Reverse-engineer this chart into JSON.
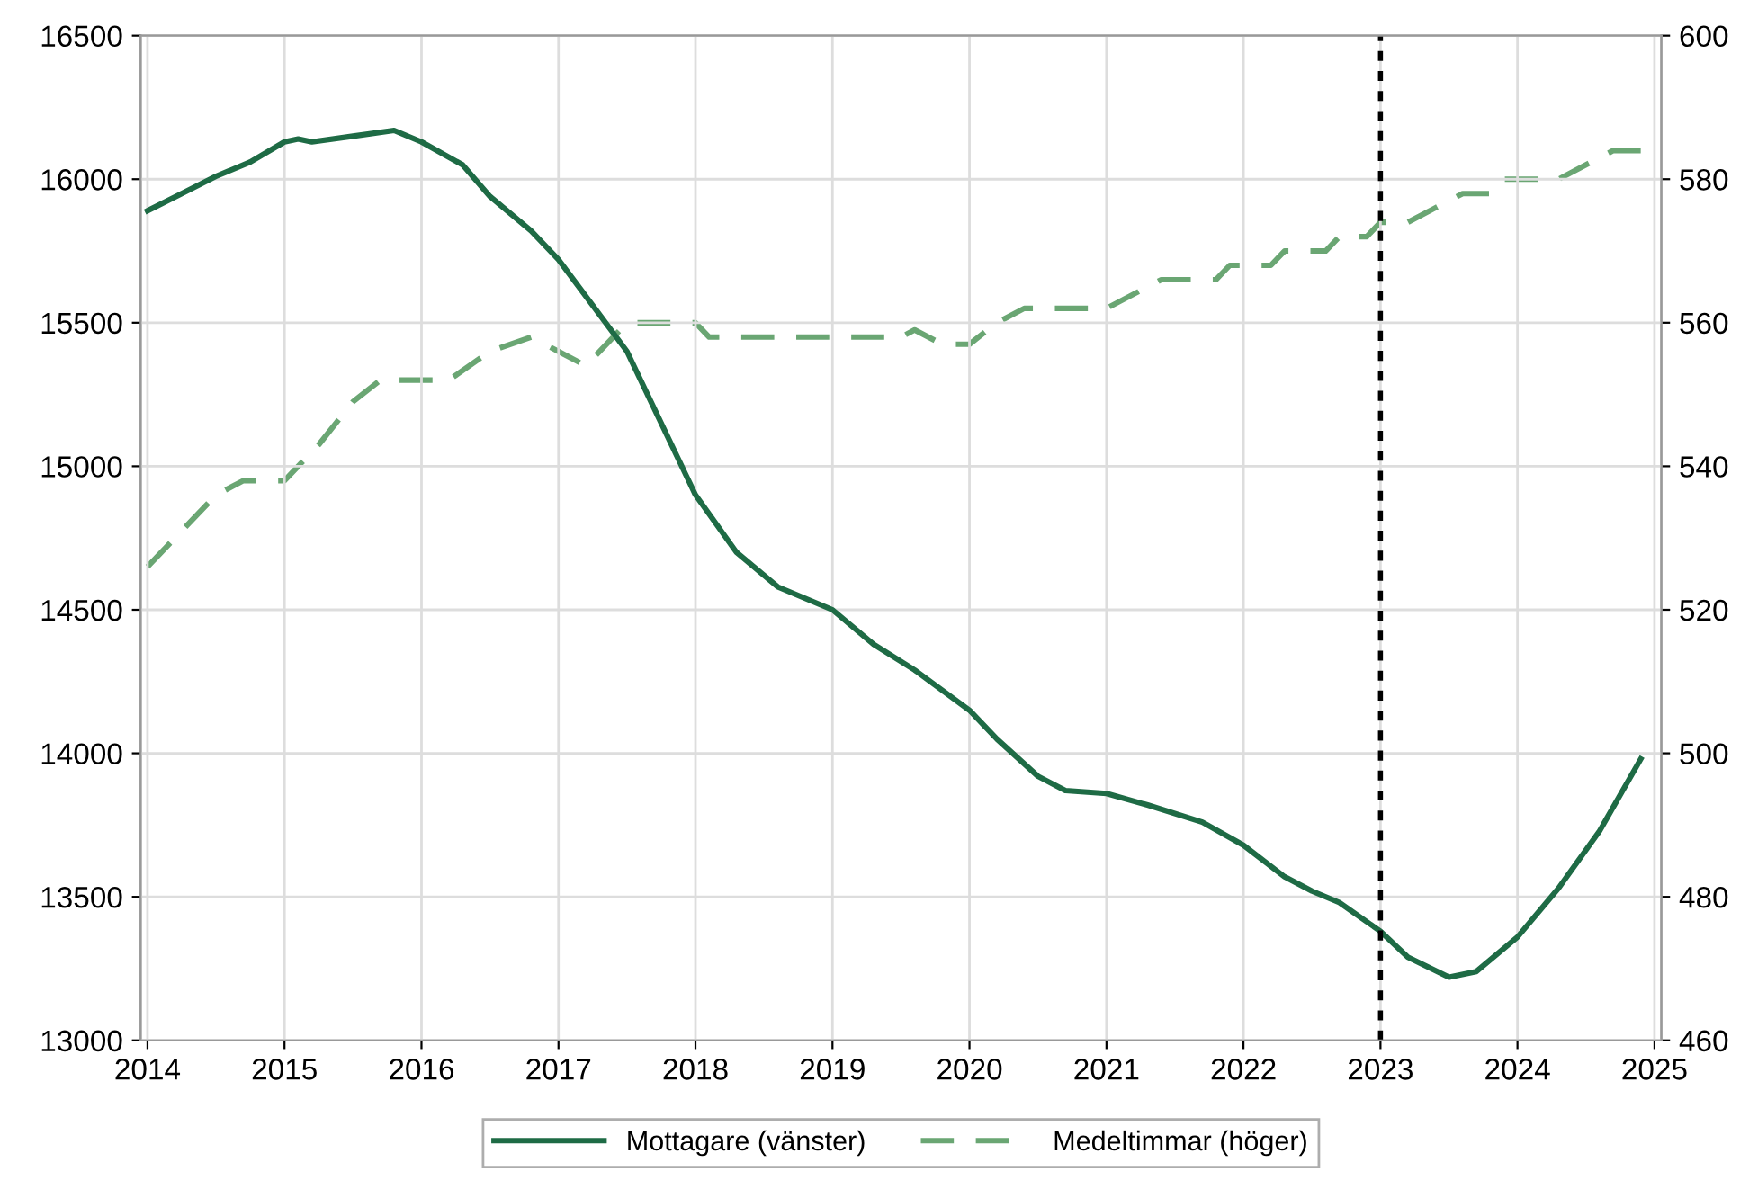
{
  "chart_data": {
    "type": "line",
    "x": [
      2014.0,
      2014.25,
      2014.5,
      2014.75,
      2015.0,
      2015.1,
      2015.2,
      2015.5,
      2015.8,
      2016.0,
      2016.3,
      2016.5,
      2016.8,
      2017.0,
      2017.25,
      2017.5,
      2017.7,
      2018.0,
      2018.3,
      2018.5,
      2018.6,
      2018.8,
      2019.0,
      2019.3,
      2019.6,
      2020.0,
      2020.2,
      2020.5,
      2020.7,
      2021.0,
      2021.3,
      2021.7,
      2022.0,
      2022.3,
      2022.5,
      2022.7,
      2023.0,
      2023.2,
      2023.5,
      2023.7,
      2024.0,
      2024.3,
      2024.6,
      2024.9
    ],
    "series": [
      {
        "name": "Mottagare (vänster)",
        "color": "#1e6b45",
        "line_style": "solid",
        "values": [
          15890,
          15950,
          16010,
          16060,
          16130,
          16140,
          16130,
          16150,
          16170,
          16130,
          16050,
          15940,
          15820,
          15720,
          15560,
          15400,
          15200,
          14900,
          14700,
          14620,
          14580,
          14540,
          14500,
          14380,
          14290,
          14150,
          14050,
          13920,
          13870,
          13860,
          13820,
          13760,
          13680,
          13570,
          13520,
          13480,
          13380,
          13290,
          13220,
          13240,
          13360,
          13530,
          13730,
          13980
        ]
      },
      {
        "name": "Medeltimmar (höger)",
        "color": "#6aa673",
        "line_style": "dashed",
        "axis": "y2",
        "x": [
          2014.0,
          2014.25,
          2014.5,
          2014.7,
          2015.0,
          2015.25,
          2015.5,
          2015.7,
          2016.2,
          2016.5,
          2016.8,
          2017.0,
          2017.2,
          2017.5,
          2018.0,
          2018.1,
          2019.5,
          2019.6,
          2019.8,
          2020.0,
          2020.2,
          2020.4,
          2021.0,
          2021.2,
          2021.4,
          2021.8,
          2021.9,
          2022.2,
          2022.3,
          2022.6,
          2022.7,
          2022.9,
          2023.0,
          2023.2,
          2023.4,
          2023.6,
          2023.8,
          2023.9,
          2024.3,
          2024.5,
          2024.7,
          2024.9
        ],
        "values": [
          526,
          531,
          536,
          538,
          538,
          543,
          549,
          552,
          552,
          556,
          558,
          556,
          554,
          560,
          560,
          558,
          558,
          559,
          557,
          557,
          560,
          562,
          562,
          564,
          566,
          566,
          568,
          568,
          570,
          570,
          572,
          572,
          574,
          574,
          576,
          578,
          578,
          580,
          580,
          582,
          584,
          584
        ]
      }
    ],
    "xlim": [
      2013.95,
      2025.05
    ],
    "xticks": [
      2014,
      2015,
      2016,
      2017,
      2018,
      2019,
      2020,
      2021,
      2022,
      2023,
      2024,
      2025
    ],
    "ylim": [
      13000,
      16500
    ],
    "yticks": [
      13000,
      13500,
      14000,
      14500,
      15000,
      15500,
      16000,
      16500
    ],
    "y2lim": [
      460,
      600
    ],
    "y2ticks": [
      460,
      480,
      500,
      520,
      540,
      560,
      580,
      600
    ],
    "ref_lines": [
      {
        "axis": "x",
        "value": 2023,
        "color": "#000000",
        "line_style": "dotted"
      }
    ],
    "grid": true,
    "legend": "bottom"
  }
}
